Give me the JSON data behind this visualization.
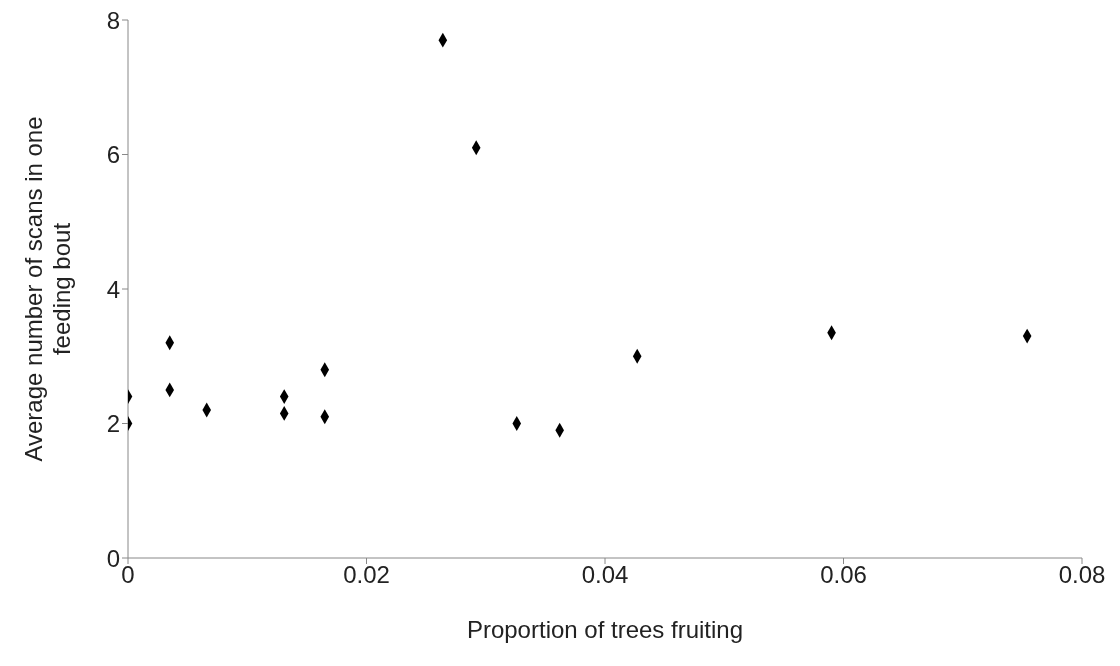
{
  "chart_data": {
    "type": "scatter",
    "xlabel": "Proportion of trees fruiting",
    "ylabel": "Average number of scans in one feeding bout",
    "x": [
      0,
      0,
      0.0035,
      0.0035,
      0.0066,
      0.0131,
      0.0131,
      0.0165,
      0.0165,
      0.0264,
      0.0292,
      0.0326,
      0.0362,
      0.0427,
      0.059,
      0.0754
    ],
    "series": [
      {
        "color": "#000000",
        "values": [
          2.0,
          2.4,
          3.2,
          2.5,
          2.2,
          2.4,
          2.15,
          2.8,
          2.1,
          7.7,
          6.1,
          2.0,
          1.9,
          3.0,
          3.35,
          3.3
        ]
      }
    ],
    "xlim": [
      0,
      0.08
    ],
    "xticks": [
      0,
      0.02,
      0.04,
      0.06,
      0.08
    ],
    "ylim": [
      0,
      8
    ],
    "yticks": [
      0,
      2,
      4,
      6,
      8
    ],
    "marker": "diamond"
  }
}
